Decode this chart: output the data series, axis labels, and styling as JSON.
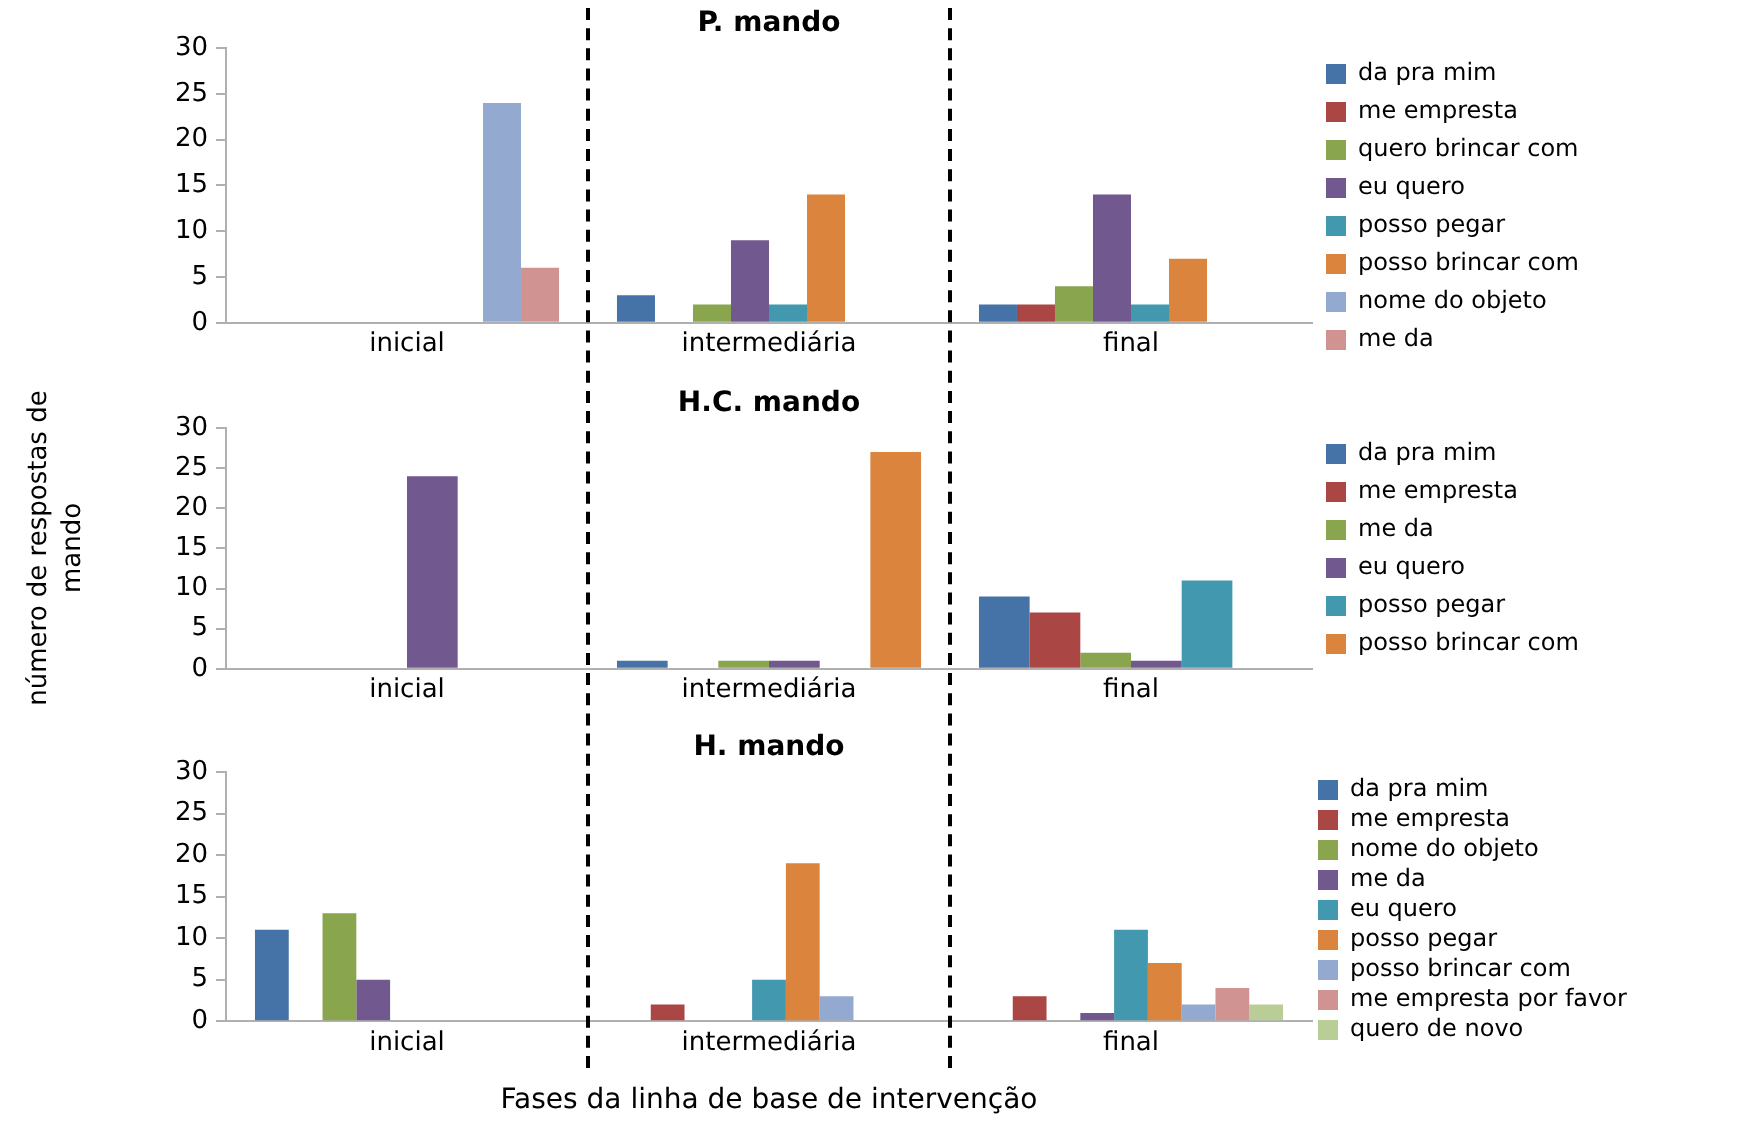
{
  "chart_data": [
    {
      "type": "bar",
      "title": "P. mando",
      "categories": [
        "inicial",
        "intermediária",
        "final"
      ],
      "ylim": [
        0,
        30
      ],
      "yticks": [
        0,
        5,
        10,
        15,
        20,
        25,
        30
      ],
      "grid": false,
      "legend": "right",
      "series": [
        {
          "name": "da pra mim",
          "color": "#4572a7",
          "values": [
            0,
            3,
            2
          ]
        },
        {
          "name": "me empresta",
          "color": "#aa4643",
          "values": [
            0,
            0,
            2
          ]
        },
        {
          "name": "quero brincar com",
          "color": "#89a54e",
          "values": [
            0,
            2,
            4
          ]
        },
        {
          "name": "eu quero",
          "color": "#71588f",
          "values": [
            0,
            9,
            14
          ]
        },
        {
          "name": "posso pegar",
          "color": "#4198af",
          "values": [
            0,
            2,
            2
          ]
        },
        {
          "name": "posso brincar com",
          "color": "#db843d",
          "values": [
            0,
            14,
            7
          ]
        },
        {
          "name": "nome do objeto",
          "color": "#93a9cf",
          "values": [
            24,
            0,
            0
          ]
        },
        {
          "name": "me da",
          "color": "#d19392",
          "values": [
            6,
            0,
            0
          ]
        }
      ]
    },
    {
      "type": "bar",
      "title": "H.C. mando",
      "ylabel": "número de respostas de mando",
      "categories": [
        "inicial",
        "intermediária",
        "final"
      ],
      "ylim": [
        0,
        30
      ],
      "yticks": [
        0,
        5,
        10,
        15,
        20,
        25,
        30
      ],
      "grid": false,
      "legend": "right",
      "series": [
        {
          "name": "da pra mim",
          "color": "#4572a7",
          "values": [
            0,
            1,
            9
          ]
        },
        {
          "name": "me empresta",
          "color": "#aa4643",
          "values": [
            0,
            0,
            7
          ]
        },
        {
          "name": "me da",
          "color": "#89a54e",
          "values": [
            0,
            1,
            2
          ]
        },
        {
          "name": "eu quero",
          "color": "#71588f",
          "values": [
            24,
            1,
            1
          ]
        },
        {
          "name": "posso pegar",
          "color": "#4198af",
          "values": [
            0,
            0,
            11
          ]
        },
        {
          "name": "posso brincar com",
          "color": "#db843d",
          "values": [
            0,
            27,
            0
          ]
        }
      ]
    },
    {
      "type": "bar",
      "title": "H. mando",
      "xlabel": "Fases da linha de base de intervenção",
      "categories": [
        "inicial",
        "intermediária",
        "final"
      ],
      "ylim": [
        0,
        30
      ],
      "yticks": [
        0,
        5,
        10,
        15,
        20,
        25,
        30
      ],
      "grid": false,
      "legend": "right",
      "series": [
        {
          "name": "da pra mim",
          "color": "#4572a7",
          "values": [
            11,
            0,
            0
          ]
        },
        {
          "name": "me empresta",
          "color": "#aa4643",
          "values": [
            0,
            2,
            3
          ]
        },
        {
          "name": "nome do objeto",
          "color": "#89a54e",
          "values": [
            13,
            0,
            0
          ]
        },
        {
          "name": "me da",
          "color": "#71588f",
          "values": [
            5,
            0,
            1
          ]
        },
        {
          "name": "eu quero",
          "color": "#4198af",
          "values": [
            0,
            5,
            11
          ]
        },
        {
          "name": "posso pegar",
          "color": "#db843d",
          "values": [
            0,
            19,
            7
          ]
        },
        {
          "name": "posso brincar com",
          "color": "#93a9cf",
          "values": [
            0,
            3,
            2
          ]
        },
        {
          "name": "me empresta por favor",
          "color": "#d19392",
          "values": [
            0,
            0,
            4
          ]
        },
        {
          "name": "quero de novo",
          "color": "#b9cd96",
          "values": [
            0,
            0,
            2
          ]
        }
      ]
    }
  ]
}
